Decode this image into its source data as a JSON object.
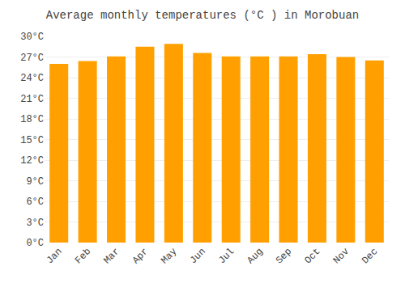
{
  "chart_data": {
    "type": "bar",
    "title": "Average monthly temperatures (°C ) in Morobuan",
    "categories": [
      "Jan",
      "Feb",
      "Mar",
      "Apr",
      "May",
      "Jun",
      "Jul",
      "Aug",
      "Sep",
      "Oct",
      "Nov",
      "Dec"
    ],
    "values": [
      26.0,
      26.4,
      27.1,
      28.5,
      28.9,
      27.6,
      27.1,
      27.1,
      27.1,
      27.4,
      27.0,
      26.5
    ],
    "color": "#FFA000",
    "ylim": [
      0,
      30
    ],
    "yticks": [
      {
        "value": 0,
        "label": "0°C"
      },
      {
        "value": 3,
        "label": "3°C"
      },
      {
        "value": 6,
        "label": "6°C"
      },
      {
        "value": 9,
        "label": "9°C"
      },
      {
        "value": 12,
        "label": "12°C"
      },
      {
        "value": 15,
        "label": "15°C"
      },
      {
        "value": 18,
        "label": "18°C"
      },
      {
        "value": 21,
        "label": "21°C"
      },
      {
        "value": 24,
        "label": "24°C"
      },
      {
        "value": 27,
        "label": "27°C"
      },
      {
        "value": 30,
        "label": "30°C"
      }
    ],
    "grid": true
  }
}
